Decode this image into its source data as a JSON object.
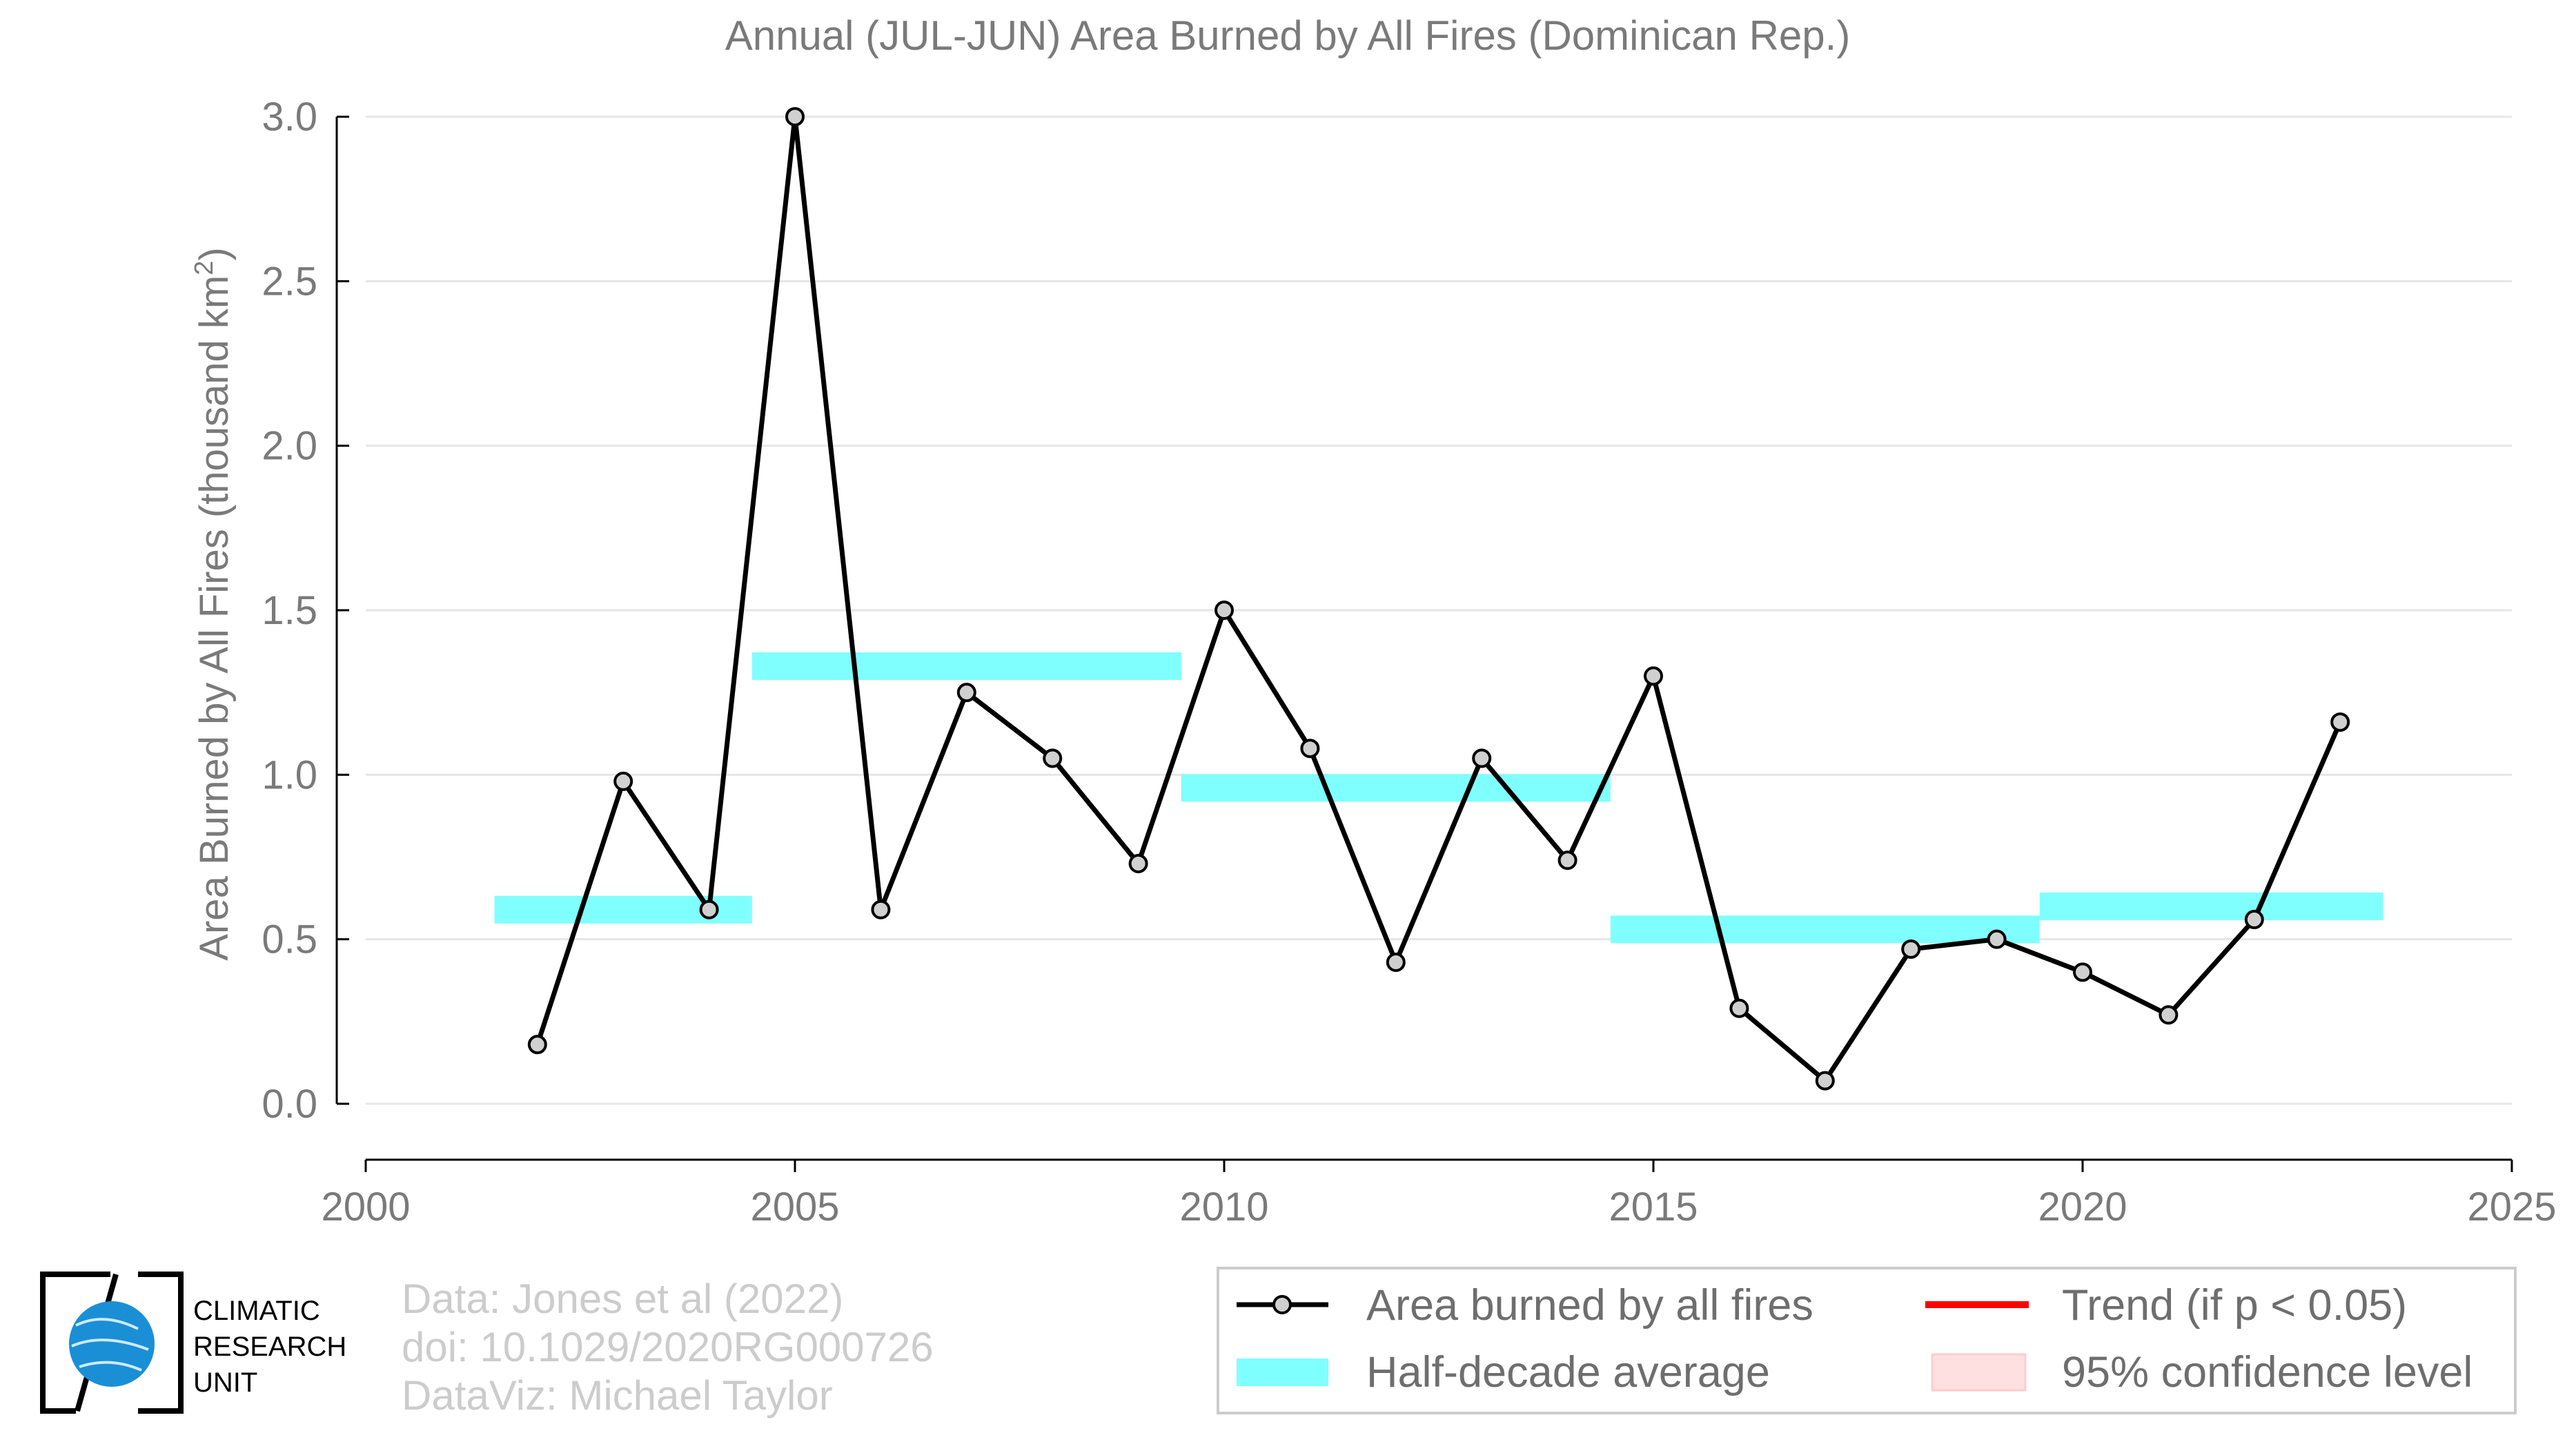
{
  "chart_data": {
    "type": "line",
    "title": "Annual (JUL-JUN) Area Burned by All Fires (Dominican Rep.)",
    "xlabel": "",
    "ylabel": "Area Burned by All Fires (thousand km",
    "ylabel_sup": "2",
    "ylabel_close": ")",
    "xlim": [
      2000,
      2025
    ],
    "ylim": [
      -0.17,
      3.04
    ],
    "x_ticks": [
      2000,
      2005,
      2010,
      2015,
      2020,
      2025
    ],
    "x_tick_labels": [
      "2000",
      "2005",
      "2010",
      "2015",
      "2020",
      "2025"
    ],
    "y_ticks": [
      0.0,
      0.5,
      1.0,
      1.5,
      2.0,
      2.5,
      3.0
    ],
    "y_tick_labels": [
      "0.0",
      "0.5",
      "1.0",
      "1.5",
      "2.0",
      "2.5",
      "3.0"
    ],
    "grid": true,
    "series": [
      {
        "name": "Area burned by all fires",
        "type": "line",
        "color": "#000000",
        "marker_fill": "#d0d0d0",
        "x": [
          2002,
          2003,
          2004,
          2005,
          2006,
          2007,
          2008,
          2009,
          2010,
          2011,
          2012,
          2013,
          2014,
          2015,
          2016,
          2017,
          2018,
          2019,
          2020,
          2021,
          2022,
          2023
        ],
        "y": [
          0.18,
          0.98,
          0.59,
          3.0,
          0.59,
          1.25,
          1.05,
          0.73,
          1.5,
          1.08,
          0.43,
          1.05,
          0.74,
          1.3,
          0.29,
          0.07,
          0.47,
          0.5,
          0.4,
          0.27,
          0.56,
          1.16
        ]
      },
      {
        "name": "Half-decade average",
        "type": "band",
        "color": "#80ffff",
        "segments": [
          {
            "x0": 2001.5,
            "x1": 2004.5,
            "y": 0.59
          },
          {
            "x0": 2004.5,
            "x1": 2009.5,
            "y": 1.33
          },
          {
            "x0": 2009.5,
            "x1": 2014.5,
            "y": 0.96
          },
          {
            "x0": 2014.5,
            "x1": 2019.5,
            "y": 0.53
          },
          {
            "x0": 2019.5,
            "x1": 2023.5,
            "y": 0.6
          }
        ]
      }
    ],
    "legend": {
      "placement": "bottom-right",
      "entries": [
        {
          "label": "Area burned by all fires",
          "kind": "line-marker",
          "color": "#000000"
        },
        {
          "label": "Trend (if p < 0.05)",
          "kind": "line",
          "color": "#ff0000"
        },
        {
          "label": "Half-decade average",
          "kind": "band",
          "color": "#80ffff"
        },
        {
          "label": "95% confidence level",
          "kind": "box",
          "color": "#ffe0e0"
        }
      ]
    }
  },
  "credits": {
    "line1": "Data: Jones et al (2022)",
    "line2": "doi: 10.1029/2020RG000726",
    "line3": "DataViz: Michael Taylor"
  },
  "logo": {
    "name": "Climatic Research Unit",
    "line1": "CLIMATIC",
    "line2": "RESEARCH",
    "line3": "UNIT",
    "color": "#1a8fd6"
  }
}
